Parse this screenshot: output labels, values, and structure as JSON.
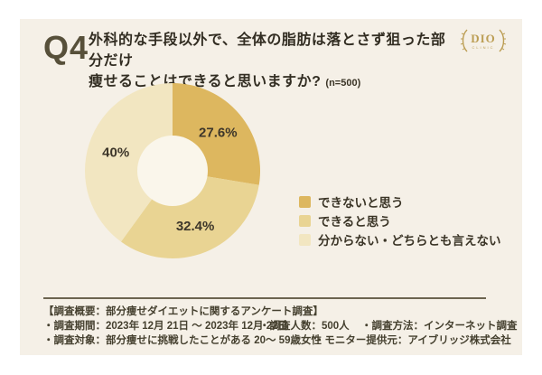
{
  "page": {
    "outer_bg": "#FFFFFF",
    "card_bg": "#F5F0E7"
  },
  "header": {
    "q_label": "Q4",
    "title_line1": "外科的な手段以外で、全体の脂肪は落とさず狙った部分だけ",
    "title_line2": "痩せることはできると思いますか?",
    "sample_note": "(n=500)"
  },
  "logo": {
    "name": "DIO",
    "sub": "CLINIC",
    "color": "#BC9E54"
  },
  "chart_data": {
    "type": "pie",
    "donut": true,
    "title": "外科的な手段以外で、全体の脂肪は落とさず狙った部分だけ痩せることはできると思いますか? (n=500)",
    "categories": [
      "できないと思う",
      "できると思う",
      "分からない・どちらとも言えない"
    ],
    "values": [
      27.6,
      32.4,
      40
    ],
    "unit": "%",
    "colors": [
      "#DDB75F",
      "#E9D493",
      "#F2E6C1"
    ],
    "hole_color": "#FAF6EB",
    "label_color": "#3D362A",
    "start_angle_deg": 0,
    "direction": "clockwise",
    "legend_position": "right",
    "grid": false
  },
  "footer": {
    "heading": "【調査概要：部分痩せダイエットに関するアンケート調査】",
    "rows": [
      [
        "・調査期間：2023年 12月 21日 ～ 2023年 12月 22日",
        "・調査人数：500人",
        "・調査方法：インターネット調査"
      ],
      [
        "・調査対象：部分痩せに挑戦したことがある 20～ 59歳女性",
        "・モニター提供元：アイブリッジ株式会社"
      ]
    ]
  }
}
